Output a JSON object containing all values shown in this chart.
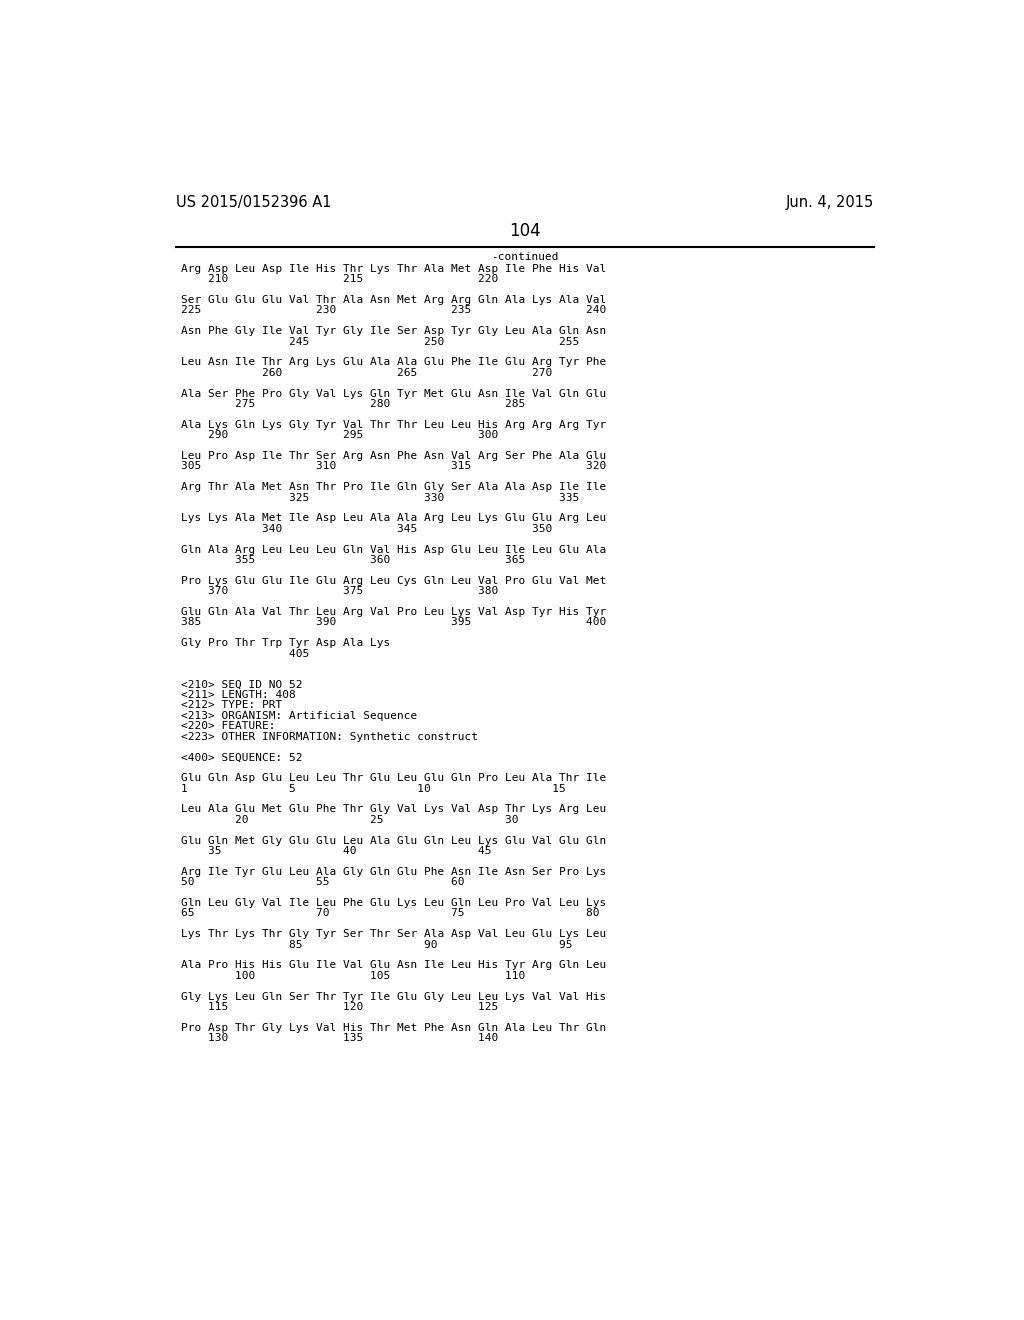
{
  "header_left": "US 2015/0152396 A1",
  "header_right": "Jun. 4, 2015",
  "page_number": "104",
  "continued_label": "-continued",
  "background_color": "#ffffff",
  "text_color": "#000000",
  "font_size": 8.0,
  "mono_font": "DejaVu Sans Mono",
  "header_font_size": 10.5,
  "page_num_font_size": 12,
  "content_lines": [
    "Arg Asp Leu Asp Ile His Thr Lys Thr Ala Met Asp Ile Phe His Val",
    "    210                 215                 220",
    "",
    "Ser Glu Glu Glu Val Thr Ala Asn Met Arg Arg Gln Ala Lys Ala Val",
    "225                 230                 235                 240",
    "",
    "Asn Phe Gly Ile Val Tyr Gly Ile Ser Asp Tyr Gly Leu Ala Gln Asn",
    "                245                 250                 255",
    "",
    "Leu Asn Ile Thr Arg Lys Glu Ala Ala Glu Phe Ile Glu Arg Tyr Phe",
    "            260                 265                 270",
    "",
    "Ala Ser Phe Pro Gly Val Lys Gln Tyr Met Glu Asn Ile Val Gln Glu",
    "        275                 280                 285",
    "",
    "Ala Lys Gln Lys Gly Tyr Val Thr Thr Leu Leu His Arg Arg Arg Tyr",
    "    290                 295                 300",
    "",
    "Leu Pro Asp Ile Thr Ser Arg Asn Phe Asn Val Arg Ser Phe Ala Glu",
    "305                 310                 315                 320",
    "",
    "Arg Thr Ala Met Asn Thr Pro Ile Gln Gly Ser Ala Ala Asp Ile Ile",
    "                325                 330                 335",
    "",
    "Lys Lys Ala Met Ile Asp Leu Ala Ala Arg Leu Lys Glu Glu Arg Leu",
    "            340                 345                 350",
    "",
    "Gln Ala Arg Leu Leu Leu Gln Val His Asp Glu Leu Ile Leu Glu Ala",
    "        355                 360                 365",
    "",
    "Pro Lys Glu Glu Ile Glu Arg Leu Cys Gln Leu Val Pro Glu Val Met",
    "    370                 375                 380",
    "",
    "Glu Gln Ala Val Thr Leu Arg Val Pro Leu Lys Val Asp Tyr His Tyr",
    "385                 390                 395                 400",
    "",
    "Gly Pro Thr Trp Tyr Asp Ala Lys",
    "                405",
    "",
    "",
    "<210> SEQ ID NO 52",
    "<211> LENGTH: 408",
    "<212> TYPE: PRT",
    "<213> ORGANISM: Artificial Sequence",
    "<220> FEATURE:",
    "<223> OTHER INFORMATION: Synthetic construct",
    "",
    "<400> SEQUENCE: 52",
    "",
    "Glu Gln Asp Glu Leu Leu Thr Glu Leu Glu Gln Pro Leu Ala Thr Ile",
    "1               5                  10                  15",
    "",
    "Leu Ala Glu Met Glu Phe Thr Gly Val Lys Val Asp Thr Lys Arg Leu",
    "        20                  25                  30",
    "",
    "Glu Gln Met Gly Glu Glu Leu Ala Glu Gln Leu Lys Glu Val Glu Gln",
    "    35                  40                  45",
    "",
    "Arg Ile Tyr Glu Leu Ala Gly Gln Glu Phe Asn Ile Asn Ser Pro Lys",
    "50                  55                  60",
    "",
    "Gln Leu Gly Val Ile Leu Phe Glu Lys Leu Gln Leu Pro Val Leu Lys",
    "65                  70                  75                  80",
    "",
    "Lys Thr Lys Thr Gly Tyr Ser Thr Ser Ala Asp Val Leu Glu Lys Leu",
    "                85                  90                  95",
    "",
    "Ala Pro His His Glu Ile Val Glu Asn Ile Leu His Tyr Arg Gln Leu",
    "        100                 105                 110",
    "",
    "Gly Lys Leu Gln Ser Thr Tyr Ile Glu Gly Leu Leu Lys Val Val His",
    "    115                 120                 125",
    "",
    "Pro Asp Thr Gly Lys Val His Thr Met Phe Asn Gln Ala Leu Thr Gln",
    "    130                 135                 140"
  ]
}
